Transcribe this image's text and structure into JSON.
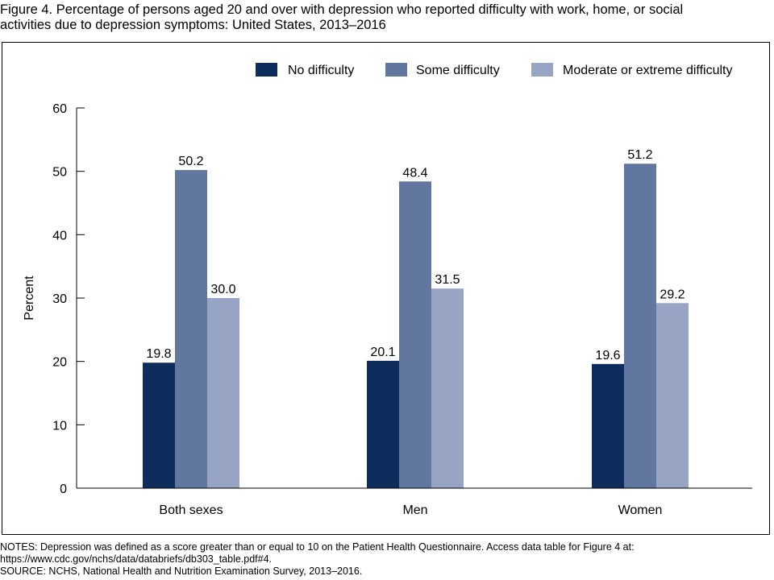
{
  "figure": {
    "title_line1": "Figure 4. Percentage of persons aged 20 and over with depression who reported difficulty with work, home, or social",
    "title_line2": "activities due to depression symptoms: United States, 2013–2016"
  },
  "chart_data": {
    "type": "bar",
    "title": "Figure 4. Percentage of persons aged 20 and over with depression who reported difficulty with work, home, or social activities due to depression symptoms: United States, 2013–2016",
    "categories": [
      "Both sexes",
      "Men",
      "Women"
    ],
    "series": [
      {
        "name": "No difficulty",
        "values": [
          19.8,
          20.1,
          19.6
        ],
        "color": "#0f2d5c"
      },
      {
        "name": "Some difficulty",
        "values": [
          50.2,
          48.4,
          51.2
        ],
        "color": "#61779f"
      },
      {
        "name": "Moderate or extreme difficulty",
        "values": [
          30.0,
          31.5,
          29.2
        ],
        "color": "#98a4c3"
      }
    ],
    "value_labels": [
      [
        "19.8",
        "20.1",
        "19.6"
      ],
      [
        "50.2",
        "48.4",
        "51.2"
      ],
      [
        "30.0",
        "31.5",
        "29.2"
      ]
    ],
    "xlabel": "",
    "ylabel": "Percent",
    "ylim": [
      0,
      60
    ],
    "yticks": [
      0,
      10,
      20,
      30,
      40,
      50,
      60
    ],
    "ytick_labels": [
      "0",
      "10",
      "20",
      "30",
      "40",
      "50",
      "60"
    ],
    "grid": false,
    "legend": "top-right"
  },
  "notes": {
    "line1": "NOTES: Depression was defined as a score greater than or equal to 10 on the Patient Health Questionnaire. Access data table for Figure 4 at:",
    "line2": "https://www.cdc.gov/nchs/data/databriefs/db303_table.pdf#4.",
    "line3": "SOURCE: NCHS, National Health and Nutrition Examination Survey, 2013–2016."
  }
}
